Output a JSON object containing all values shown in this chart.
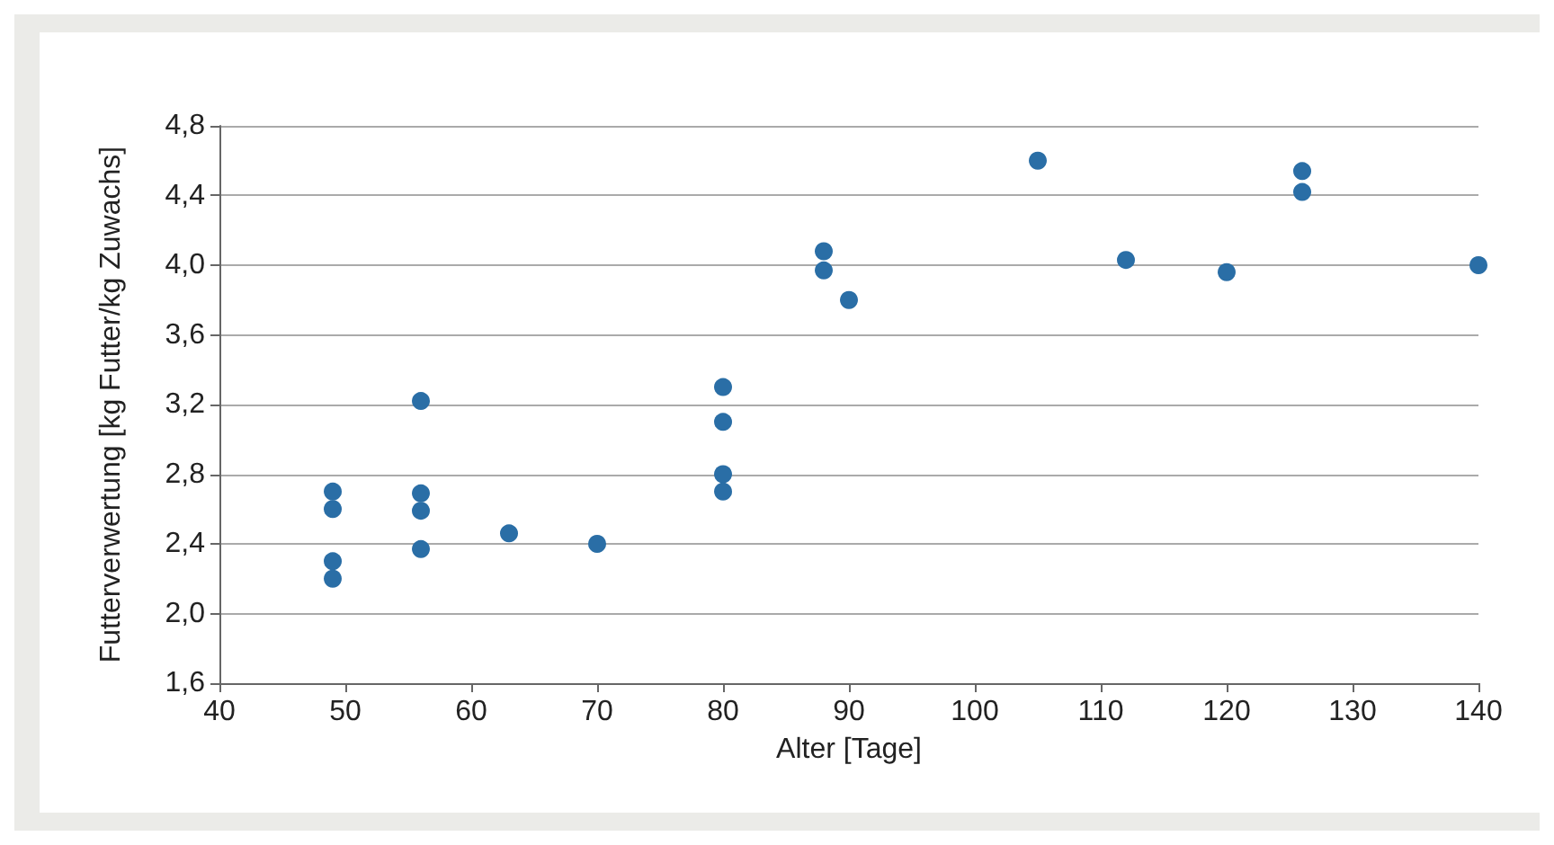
{
  "chart_data": {
    "type": "scatter",
    "xlabel": "Alter [Tage]",
    "ylabel": "Futterverwertung [kg Futter/kg Zuwachs]",
    "x": [
      49,
      49,
      49,
      49,
      56,
      56,
      56,
      56,
      63,
      70,
      80,
      80,
      80,
      80,
      88,
      88,
      90,
      105,
      112,
      120,
      126,
      126,
      140
    ],
    "series": [
      {
        "color": "#2a6ea6",
        "values": [
          2.7,
          2.6,
          2.3,
          2.2,
          3.22,
          2.69,
          2.59,
          2.37,
          2.46,
          2.4,
          3.3,
          3.1,
          2.8,
          2.7,
          4.08,
          3.97,
          3.8,
          4.6,
          4.03,
          3.96,
          4.54,
          4.42,
          4.0
        ]
      }
    ],
    "xlim": [
      40,
      140
    ],
    "xticks": [
      40,
      50,
      60,
      70,
      80,
      90,
      100,
      110,
      120,
      130,
      140
    ],
    "ylim": [
      1.6,
      4.8
    ],
    "yticks": [
      {
        "value": 1.6,
        "label": "1,6"
      },
      {
        "value": 2.0,
        "label": "2,0"
      },
      {
        "value": 2.4,
        "label": "2,4"
      },
      {
        "value": 2.8,
        "label": "2,8"
      },
      {
        "value": 3.2,
        "label": "3,2"
      },
      {
        "value": 3.6,
        "label": "3,6"
      },
      {
        "value": 4.0,
        "label": "4,0"
      },
      {
        "value": 4.4,
        "label": "4,4"
      },
      {
        "value": 4.8,
        "label": "4,8"
      }
    ],
    "grid": "y",
    "marker": "circle"
  }
}
